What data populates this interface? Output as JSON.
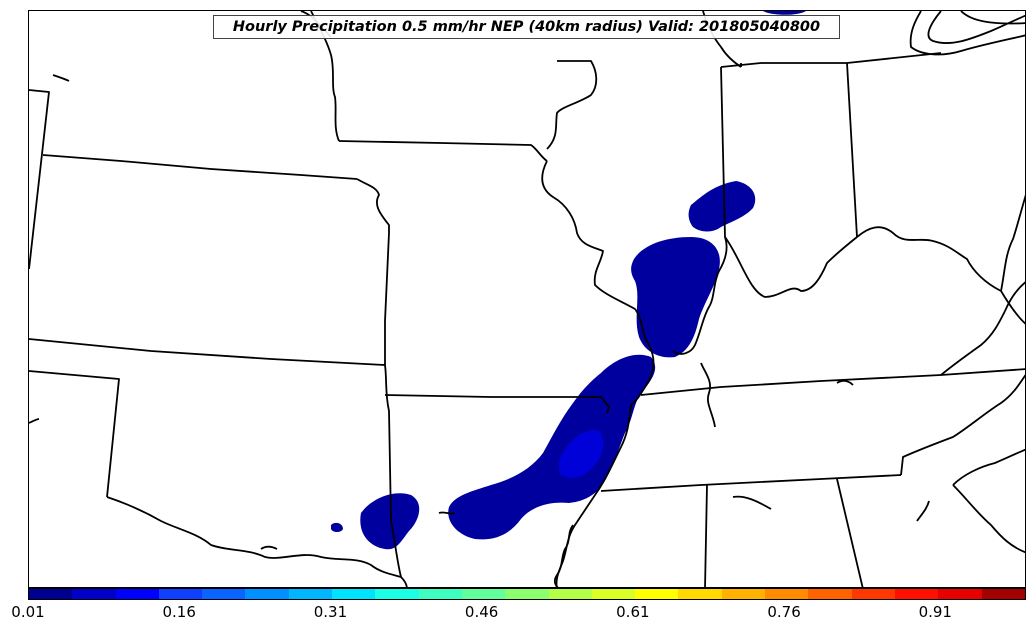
{
  "title": "Hourly Precipitation 0.5 mm/hr NEP (40km radius) Valid: 201805040800",
  "colorbar": {
    "colors": [
      "#00008f",
      "#0000c8",
      "#0000ff",
      "#0f3fff",
      "#0a64ff",
      "#0090ff",
      "#00b7ff",
      "#00e3ff",
      "#1affe6",
      "#3fffc0",
      "#62ff9a",
      "#8cff6f",
      "#b3ff48",
      "#d9ff24",
      "#ffff00",
      "#ffd900",
      "#ffb300",
      "#ff8c00",
      "#ff6200",
      "#ff3700",
      "#ff0f00",
      "#e60000",
      "#a30000"
    ],
    "ticks": [
      "0.01",
      "0.16",
      "0.31",
      "0.46",
      "0.61",
      "0.76",
      "0.91"
    ]
  },
  "map": {
    "background": "#ffffff",
    "border_color": "#000000",
    "probability_colors": {
      "low": "#00009f",
      "mid": "#0000d8"
    }
  }
}
